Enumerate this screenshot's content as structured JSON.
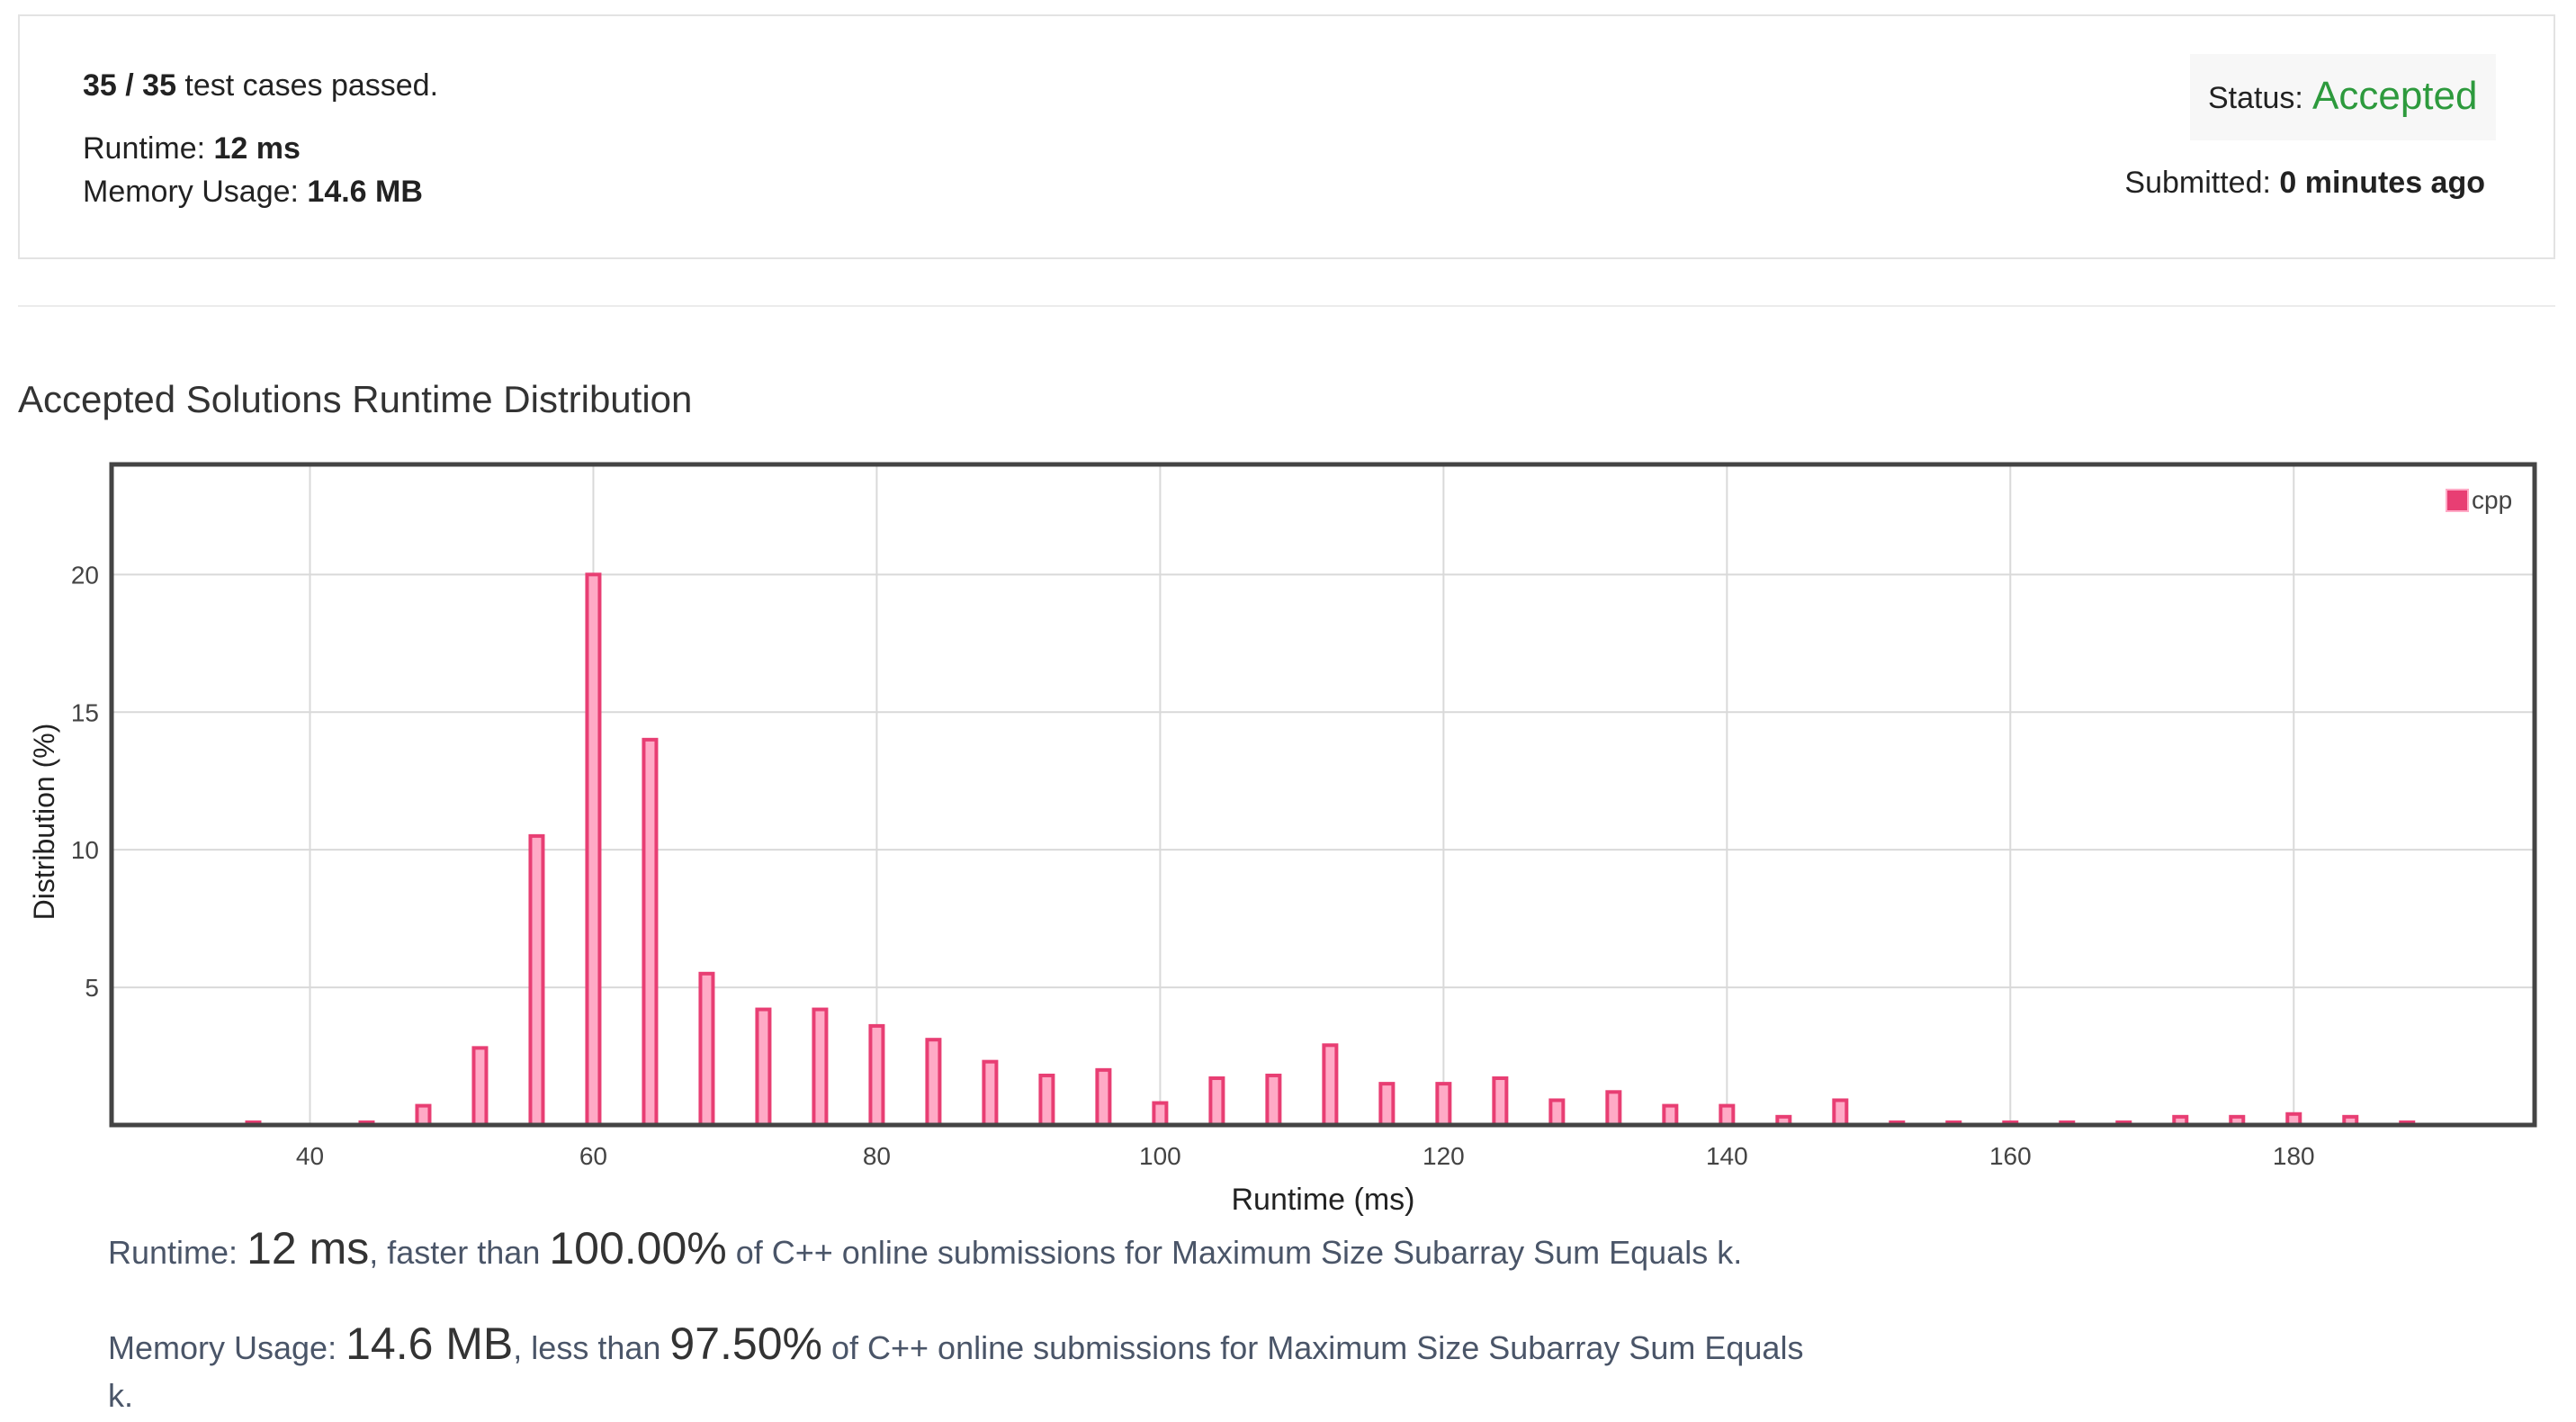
{
  "result": {
    "passed_count": "35 / 35",
    "passed_suffix": " test cases passed.",
    "runtime_label": "Runtime: ",
    "runtime_value": "12 ms",
    "memory_label": "Memory Usage: ",
    "memory_value": "14.6 MB",
    "status_label": "Status: ",
    "status_value": "Accepted",
    "submitted_label": "Submitted: ",
    "submitted_value": "0 minutes ago"
  },
  "section_title": "Accepted Solutions Runtime Distribution",
  "chart_data": {
    "type": "bar",
    "xlabel": "Runtime (ms)",
    "ylabel": "Distribution (%)",
    "xlim": [
      26,
      197
    ],
    "ylim": [
      0,
      24
    ],
    "x_ticks": [
      40,
      60,
      80,
      100,
      120,
      140,
      160,
      180
    ],
    "y_ticks": [
      5,
      10,
      15,
      20
    ],
    "grid": true,
    "legend_position": "top-right",
    "series": [
      {
        "name": "cpp",
        "color": "#e83e73",
        "fill": "#ffaac6",
        "x": [
          36,
          44,
          48,
          52,
          56,
          60,
          64,
          68,
          72,
          76,
          80,
          84,
          88,
          92,
          96,
          100,
          104,
          108,
          112,
          116,
          120,
          124,
          128,
          132,
          136,
          140,
          144,
          148,
          152,
          156,
          160,
          164,
          168,
          172,
          176,
          180,
          184,
          188
        ],
        "values": [
          0.1,
          0.1,
          0.7,
          2.8,
          10.5,
          20.0,
          14.0,
          5.5,
          4.2,
          4.2,
          3.6,
          3.1,
          2.3,
          1.8,
          2.0,
          0.8,
          1.7,
          1.8,
          2.9,
          1.5,
          1.5,
          1.7,
          0.9,
          1.2,
          0.7,
          0.7,
          0.3,
          0.9,
          0.1,
          0.1,
          0.1,
          0.1,
          0.1,
          0.3,
          0.3,
          0.4,
          0.3,
          0.1
        ]
      }
    ]
  },
  "summary": {
    "runtime_label": "Runtime: ",
    "runtime_value": "12 ms",
    "runtime_mid": ", faster than ",
    "runtime_pct": "100.00%",
    "runtime_tail": " of C++ online submissions for Maximum Size Subarray Sum Equals k.",
    "memory_label": "Memory Usage: ",
    "memory_value": "14.6 MB",
    "memory_mid": ", less than ",
    "memory_pct": "97.50%",
    "memory_tail": " of C++ online submissions for Maximum Size Subarray Sum Equals",
    "memory_tail2": "k."
  }
}
